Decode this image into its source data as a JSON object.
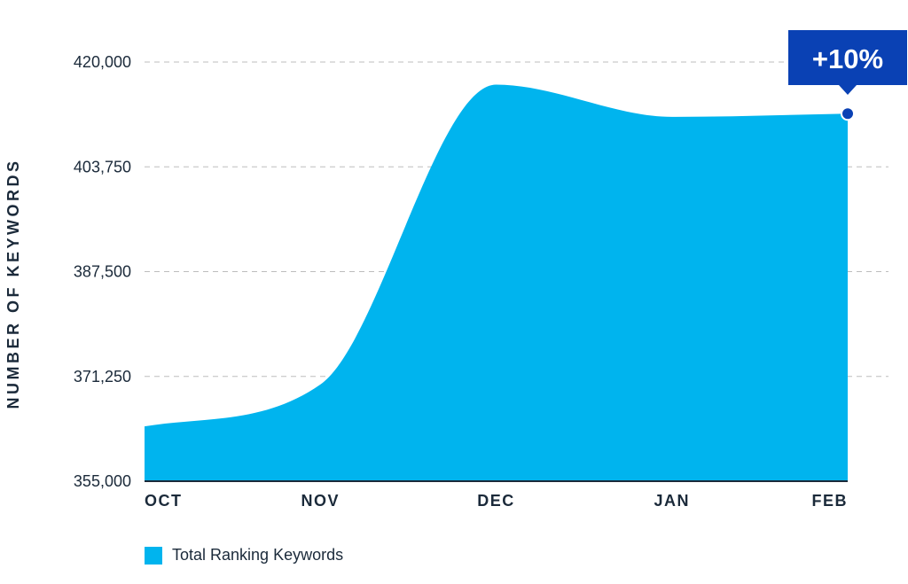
{
  "chart_data": {
    "type": "area",
    "categories": [
      "OCT",
      "NOV",
      "DEC",
      "JAN",
      "FEB"
    ],
    "series": [
      {
        "name": "Total Ranking Keywords",
        "values": [
          363500,
          370000,
          416500,
          411500,
          412000
        ]
      }
    ],
    "ylabel": "NUMBER OF KEYWORDS",
    "xlabel": "",
    "ylim": [
      355000,
      420000
    ],
    "yticks": [
      "420,000",
      "403,750",
      "387,500",
      "371,250",
      "355,000"
    ],
    "ytick_values": [
      420000,
      403750,
      387500,
      371250,
      355000
    ],
    "grid": "horizontal-dashed",
    "legend_position": "bottom-left",
    "annotation": {
      "text": "+10%",
      "target_category": "FEB"
    },
    "colors": {
      "area": "#00b4ee",
      "badge": "#0a41b4",
      "marker": "#0a41b4",
      "grid": "#bdbdbd",
      "axis": "#1b2a3a",
      "text": "#1b2a3a"
    }
  }
}
